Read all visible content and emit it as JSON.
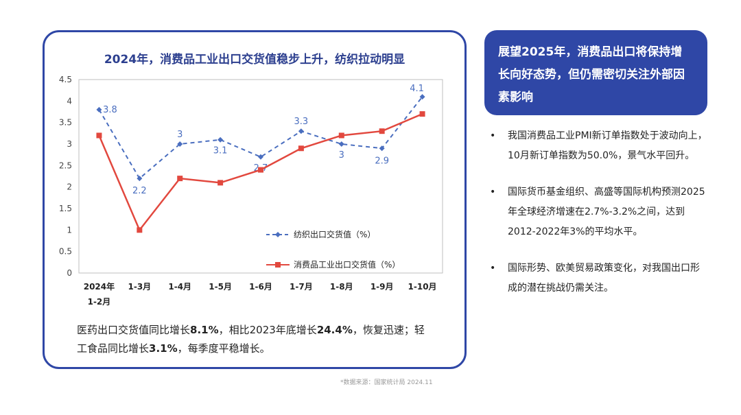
{
  "chart_data": {
    "type": "line",
    "title": "2024年，消费品工业出口交货值稳步上升，纺织拉动明显",
    "categories": [
      "2024年|1-2月",
      "1-3月",
      "1-4月",
      "1-5月",
      "1-6月",
      "1-7月",
      "1-8月",
      "1-9月",
      "1-10月"
    ],
    "ylim": [
      0,
      4.5
    ],
    "yticks": [
      "0",
      "0.5",
      "1",
      "1.5",
      "2",
      "2.5",
      "3",
      "3.5",
      "4",
      "4.5"
    ],
    "series": [
      {
        "name": "纺织出口交货值（%）",
        "values": [
          3.8,
          2.2,
          3.0,
          3.1,
          2.7,
          3.3,
          3.0,
          2.9,
          4.1
        ],
        "labels": [
          "3.8",
          "2.2",
          "3",
          "3.1",
          "2.7",
          "3.3",
          "3",
          "2.9",
          "4.1"
        ],
        "color": "#4a6ebf",
        "style": "dashed"
      },
      {
        "name": "消费品工业出口交货值（%）",
        "values": [
          3.2,
          1.0,
          2.2,
          2.1,
          2.4,
          2.9,
          3.2,
          3.3,
          3.7
        ],
        "color": "#e2483e",
        "style": "solid"
      }
    ],
    "legend_position": "lower-right-inside",
    "grid": false
  },
  "note": {
    "p1": "医药出口交货值同比增长",
    "b1": "8.1%",
    "p2": "，相比2023年底增长",
    "b2": "24.4%",
    "p3": "，恢复迅速；轻工食品同比增长",
    "b3": "3.1%",
    "p4": "，每季度平稳增长。"
  },
  "source": "*数据来源：国家统计局    2024.11",
  "outlook": "展望2025年，消费品出口将保持增长向好态势，但仍需密切关注外部因素影响",
  "bullets": [
    "我国消费品工业PMI新订单指数处于波动向上，10月新订单指数为50.0%，景气水平回升。",
    "国际货币基金组织、高盛等国际机构预测2025年全球经济增速在2.7%-3.2%之间，达到2012-2022年3%的平均水平。",
    "国际形势、欧美贸易政策变化，对我国出口形成的潜在挑战仍需关注。"
  ],
  "colors": {
    "accent": "#2f47a6"
  }
}
